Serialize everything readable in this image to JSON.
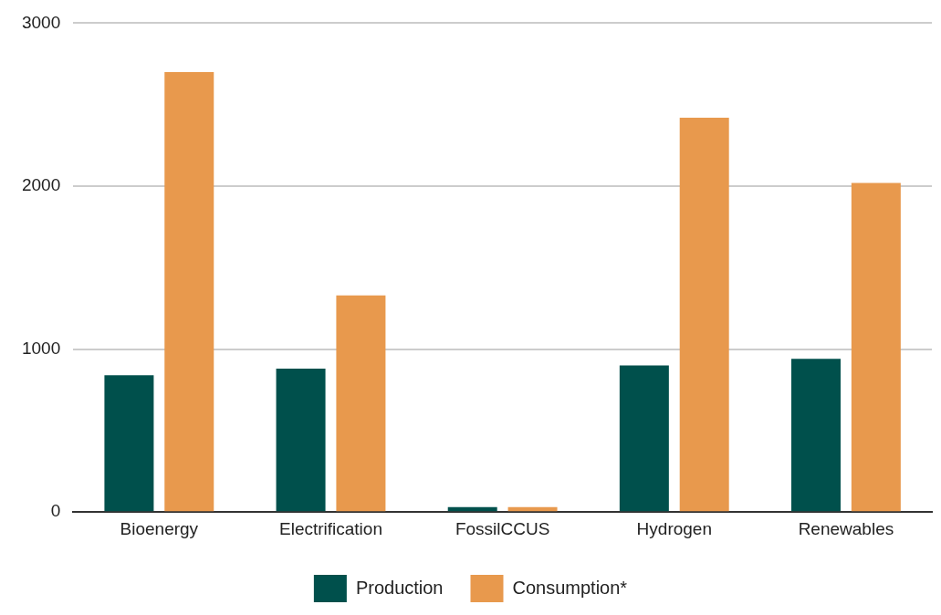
{
  "chart_data": {
    "type": "bar",
    "categories": [
      "Bioenergy",
      "Electrification",
      "FossilCCUS",
      "Hydrogen",
      "Renewables"
    ],
    "series": [
      {
        "name": "Production",
        "color": "#00504c",
        "values": [
          840,
          880,
          30,
          900,
          940
        ]
      },
      {
        "name": "Consumption*",
        "color": "#e8994d",
        "values": [
          2700,
          1330,
          30,
          2420,
          2020
        ]
      }
    ],
    "ylim": [
      0,
      3000
    ],
    "yticks": [
      0,
      1000,
      2000,
      3000
    ],
    "grid": "y",
    "legend": "bottom"
  }
}
